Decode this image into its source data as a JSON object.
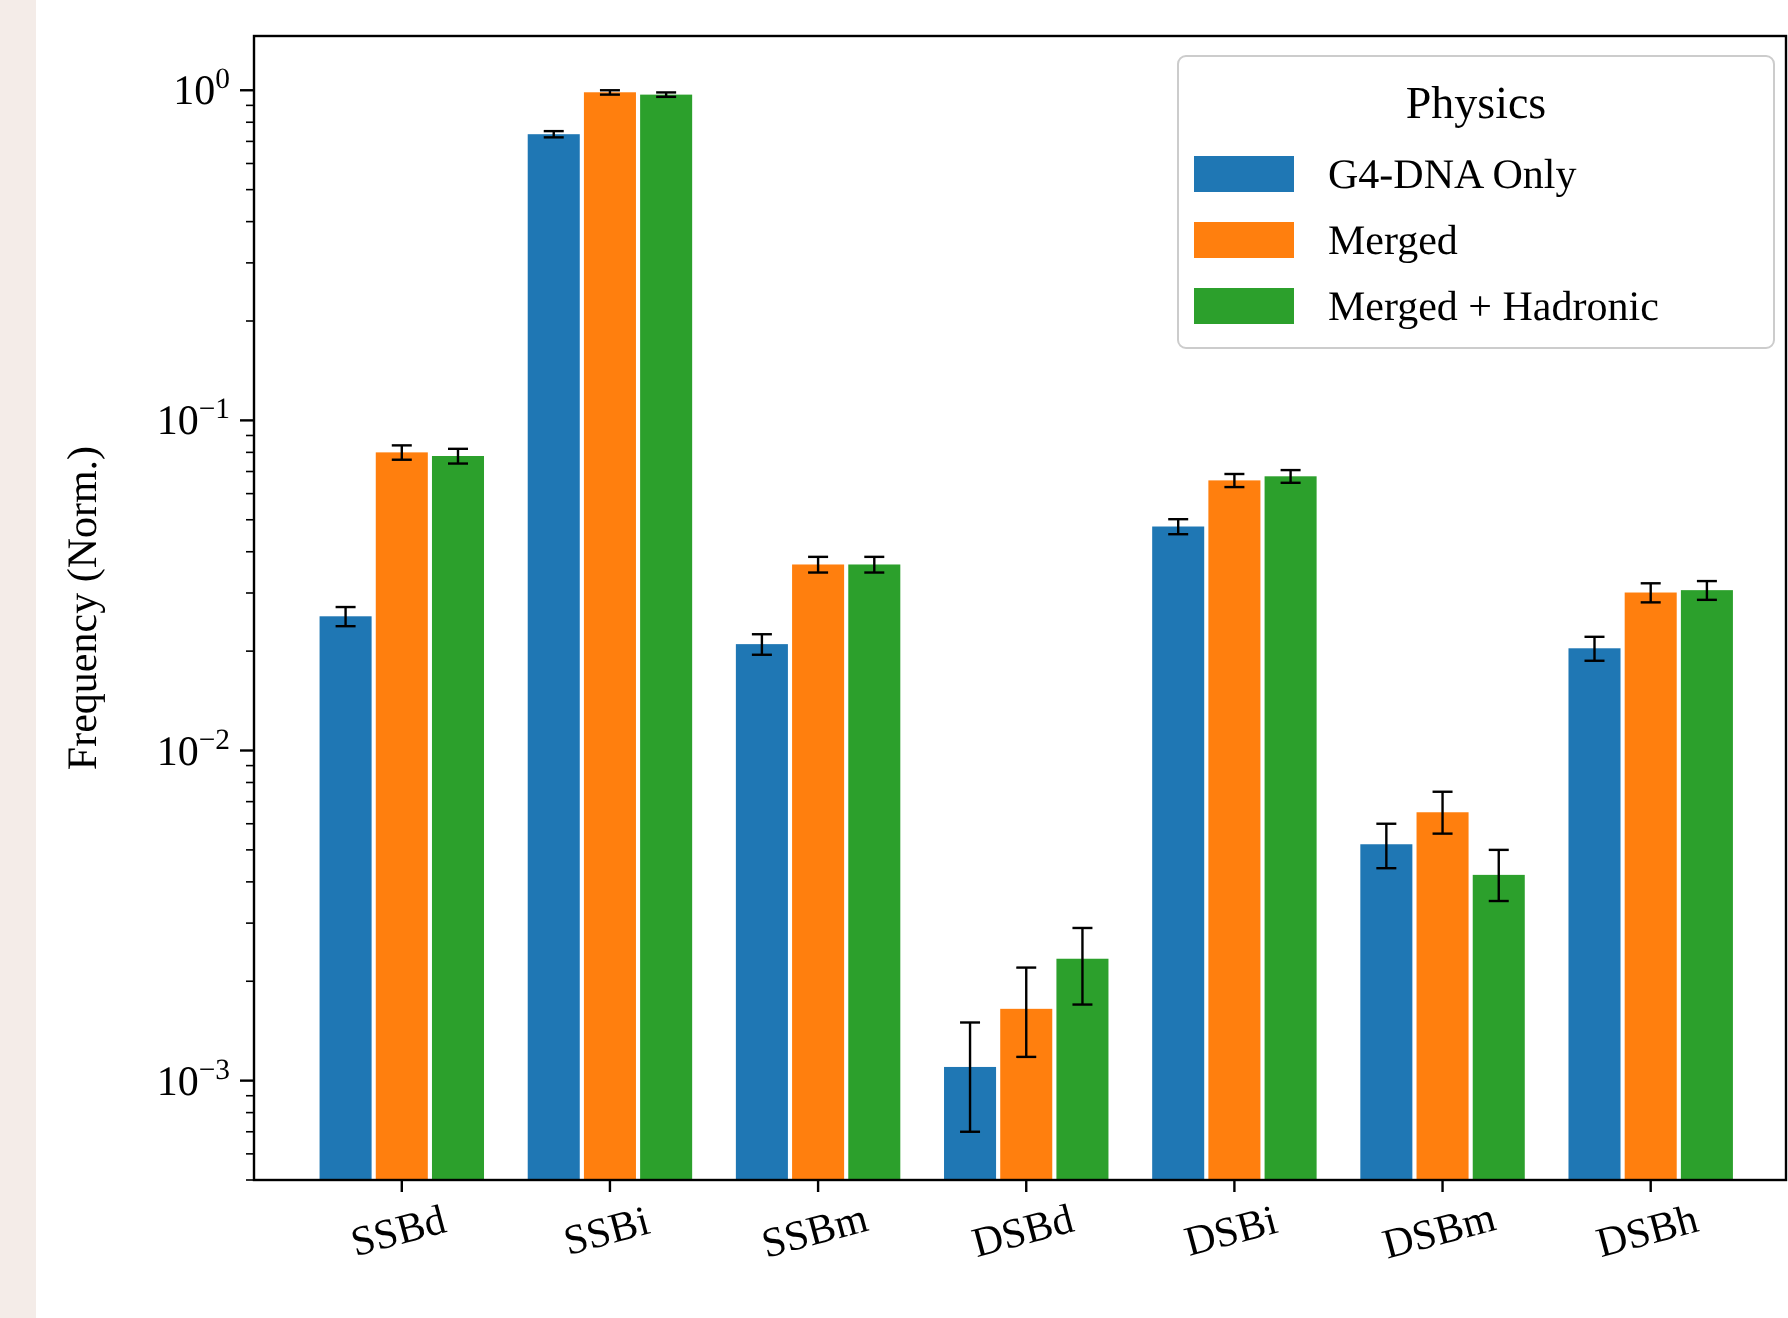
{
  "chart_data": {
    "type": "bar",
    "ylabel": "Frequency (Norm.)",
    "legend_title": "Physics",
    "legend": "top right",
    "log": true,
    "categories": [
      "SSBd",
      "SSBi",
      "SSBm",
      "DSBd",
      "DSBi",
      "DSBm",
      "DSBh"
    ],
    "ylim": [
      0.0005,
      1.46
    ],
    "yticks": [
      {
        "value": 0.0005,
        "label": null
      },
      {
        "value": 0.0006,
        "label": null
      },
      {
        "value": 0.0007,
        "label": null
      },
      {
        "value": 0.0008,
        "label": null
      },
      {
        "value": 0.0009,
        "label": null
      },
      {
        "value": 0.001,
        "label": "10$^{−3}$"
      },
      {
        "value": 0.002,
        "label": null
      },
      {
        "value": 0.003,
        "label": null
      },
      {
        "value": 0.004,
        "label": null
      },
      {
        "value": 0.005,
        "label": null
      },
      {
        "value": 0.006,
        "label": null
      },
      {
        "value": 0.007,
        "label": null
      },
      {
        "value": 0.008,
        "label": null
      },
      {
        "value": 0.009,
        "label": null
      },
      {
        "value": 0.01,
        "label": "10$^{−2}$"
      },
      {
        "value": 0.02,
        "label": null
      },
      {
        "value": 0.03,
        "label": null
      },
      {
        "value": 0.04,
        "label": null
      },
      {
        "value": 0.05,
        "label": null
      },
      {
        "value": 0.06,
        "label": null
      },
      {
        "value": 0.07,
        "label": null
      },
      {
        "value": 0.08,
        "label": null
      },
      {
        "value": 0.09,
        "label": null
      },
      {
        "value": 0.1,
        "label": "10$^{−1}$"
      },
      {
        "value": 0.2,
        "label": null
      },
      {
        "value": 0.3,
        "label": null
      },
      {
        "value": 0.4,
        "label": null
      },
      {
        "value": 0.5,
        "label": null
      },
      {
        "value": 0.6,
        "label": null
      },
      {
        "value": 0.7,
        "label": null
      },
      {
        "value": 0.8,
        "label": null
      },
      {
        "value": 0.9,
        "label": null
      },
      {
        "value": 1,
        "label": "10$^{0}$"
      }
    ],
    "series": [
      {
        "name": "G4-DNA Only",
        "color": "#1f77b4",
        "values": [
          0.0255,
          0.736,
          0.021,
          0.0011,
          0.0477,
          0.0052,
          0.0204
        ],
        "errors": [
          [
            0.0238,
            0.0272
          ],
          [
            0.72,
            0.752
          ],
          [
            0.0195,
            0.0225
          ],
          [
            0.0007,
            0.0015
          ],
          [
            0.0452,
            0.0502
          ],
          [
            0.0044,
            0.006
          ],
          [
            0.0187,
            0.0221
          ]
        ]
      },
      {
        "name": "Merged",
        "color": "#ff7f0e",
        "values": [
          0.08,
          0.986,
          0.0366,
          0.00165,
          0.0658,
          0.0065,
          0.0301
        ],
        "errors": [
          [
            0.076,
            0.084
          ],
          [
            0.97,
            1.0
          ],
          [
            0.0346,
            0.0386
          ],
          [
            0.00118,
            0.0022
          ],
          [
            0.0628,
            0.0688
          ],
          [
            0.0056,
            0.0075
          ],
          [
            0.0281,
            0.0321
          ]
        ]
      },
      {
        "name": "Merged + Hadronic",
        "color": "#2ca02c",
        "values": [
          0.078,
          0.97,
          0.0366,
          0.00234,
          0.0677,
          0.0042,
          0.0306
        ],
        "errors": [
          [
            0.074,
            0.082
          ],
          [
            0.955,
            0.985
          ],
          [
            0.0346,
            0.0386
          ],
          [
            0.0017,
            0.0029
          ],
          [
            0.0647,
            0.0707
          ],
          [
            0.0035,
            0.005
          ],
          [
            0.0286,
            0.0326
          ]
        ]
      }
    ]
  }
}
